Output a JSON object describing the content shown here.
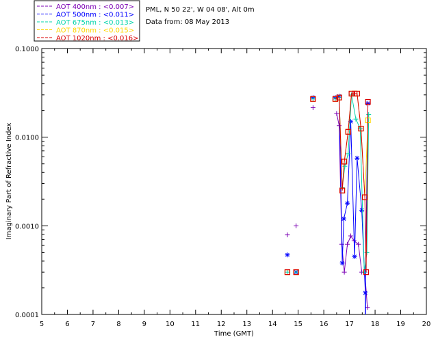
{
  "chart_data": {
    "type": "scatter",
    "header": {
      "site": "PML, N 50 22', W 04 08', Alt 0m",
      "date": "Data from: 08 May 2013"
    },
    "xlabel": "Time (GMT)",
    "ylabel": "Imaginary Part of Refractive Index",
    "xlim": [
      5,
      20
    ],
    "ylim": [
      0.0001,
      0.1
    ],
    "yscale": "log",
    "x_ticks": [
      "5",
      "6",
      "7",
      "8",
      "9",
      "10",
      "11",
      "12",
      "13",
      "14",
      "15",
      "16",
      "17",
      "18",
      "19",
      "20"
    ],
    "y_ticks": [
      {
        "value": 0.0001,
        "label": "0.0001"
      },
      {
        "value": 0.001,
        "label": "0.0010"
      },
      {
        "value": 0.01,
        "label": "0.0100"
      },
      {
        "value": 0.1,
        "label": "0.1000"
      }
    ],
    "grid": false,
    "legend_position": "top-left outside",
    "series": [
      {
        "name": "AOT 400nm : <0.007>",
        "color": "#7b00b4",
        "marker": "plus",
        "scatter": [
          [
            14.58,
            0.00079
          ],
          [
            14.92,
            0.001
          ],
          [
            15.58,
            0.0215
          ]
        ],
        "line": [
          [
            16.5,
            0.0185
          ],
          [
            16.6,
            0.0135
          ],
          [
            16.7,
            0.00062
          ],
          [
            16.8,
            0.0003
          ],
          [
            16.92,
            0.00062
          ],
          [
            17.05,
            0.00077
          ],
          [
            17.18,
            0.00068
          ],
          [
            17.35,
            0.00062
          ],
          [
            17.48,
            0.0003
          ],
          [
            17.6,
            0.0003
          ],
          [
            17.7,
            0.00012
          ]
        ]
      },
      {
        "name": "AOT 500nm : <0.011>",
        "color": "#0000ff",
        "marker": "asterisk",
        "scatter": [
          [
            14.58,
            0.00047
          ],
          [
            14.92,
            0.0003
          ],
          [
            15.58,
            0.028
          ]
        ],
        "line": [
          [
            16.45,
            0.028
          ],
          [
            16.6,
            0.029
          ],
          [
            16.72,
            0.00038
          ],
          [
            16.78,
            0.0012
          ],
          [
            16.92,
            0.0018
          ],
          [
            17.05,
            0.015
          ],
          [
            17.2,
            0.00045
          ],
          [
            17.3,
            0.0058
          ],
          [
            17.48,
            0.0015
          ],
          [
            17.62,
            0.000175
          ],
          [
            17.72,
            0.024
          ]
        ]
      },
      {
        "name": "AOT 675nm : <0.013>",
        "color": "#00d4aa",
        "marker": "plus",
        "scatter": [
          [
            14.58,
            0.0003
          ],
          [
            14.92,
            0.0003
          ],
          [
            15.58,
            0.027
          ]
        ],
        "line": [
          [
            16.45,
            0.027
          ],
          [
            16.6,
            0.028
          ],
          [
            16.72,
            0.0027
          ],
          [
            16.82,
            0.0047
          ],
          [
            16.95,
            0.0065
          ],
          [
            17.08,
            0.03
          ],
          [
            17.25,
            0.016
          ],
          [
            17.42,
            0.0125
          ],
          [
            17.58,
            0.0003
          ],
          [
            17.68,
            0.0005
          ],
          [
            17.75,
            0.018
          ]
        ]
      },
      {
        "name": "AOT 870nm : <0.015>",
        "color": "#ffd700",
        "marker": "square",
        "scatter": [
          [
            14.58,
            0.0003
          ],
          [
            14.92,
            0.0003
          ],
          [
            15.58,
            0.027
          ]
        ],
        "line": [
          [
            16.45,
            0.027
          ],
          [
            16.6,
            0.028
          ],
          [
            16.72,
            0.0025
          ],
          [
            16.8,
            0.0053
          ],
          [
            16.95,
            0.0115
          ],
          [
            17.08,
            0.031
          ],
          [
            17.2,
            0.031
          ],
          [
            17.3,
            0.031
          ],
          [
            17.45,
            0.0125
          ],
          [
            17.6,
            0.0021
          ],
          [
            17.72,
            0.0155
          ]
        ]
      },
      {
        "name": "AOT 1020nm : <0.016>",
        "color": "#d80000",
        "marker": "square",
        "scatter": [
          [
            14.58,
            0.0003
          ],
          [
            14.92,
            0.0003
          ],
          [
            15.58,
            0.027
          ]
        ],
        "line": [
          [
            16.45,
            0.027
          ],
          [
            16.6,
            0.028
          ],
          [
            16.72,
            0.0025
          ],
          [
            16.8,
            0.0053
          ],
          [
            16.95,
            0.0115
          ],
          [
            17.08,
            0.031
          ],
          [
            17.2,
            0.031
          ],
          [
            17.3,
            0.031
          ],
          [
            17.45,
            0.0125
          ],
          [
            17.6,
            0.0021
          ],
          [
            17.65,
            0.0003
          ],
          [
            17.72,
            0.025
          ]
        ]
      }
    ]
  }
}
